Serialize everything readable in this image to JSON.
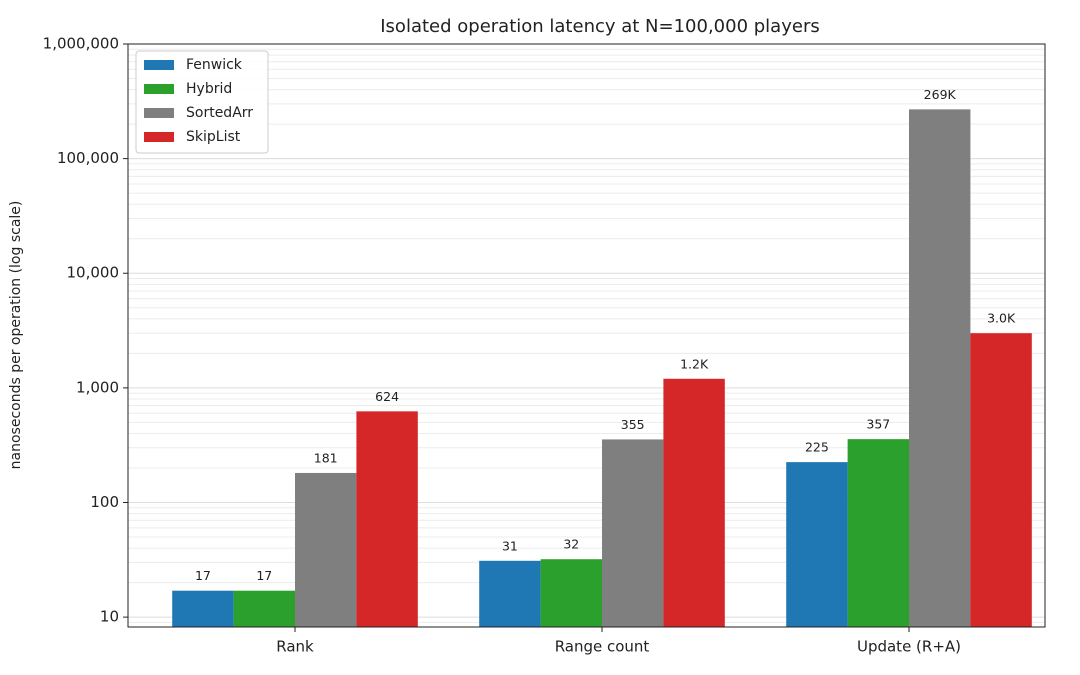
{
  "chart_data": {
    "type": "bar",
    "title": "Isolated operation latency at N=100,000 players",
    "y_label": "nanoseconds per operation (log scale)",
    "categories": [
      "Rank",
      "Range count",
      "Update (R+A)"
    ],
    "series": [
      {
        "name": "Fenwick",
        "color": "#1f77b4",
        "values": [
          17,
          31,
          225
        ]
      },
      {
        "name": "Hybrid",
        "color": "#2ca02c",
        "values": [
          17,
          32,
          357
        ]
      },
      {
        "name": "SortedArr",
        "color": "#7f7f7f",
        "values": [
          181,
          355,
          269000
        ],
        "value_labels": [
          "181",
          "355",
          "269K"
        ]
      },
      {
        "name": "SkipList",
        "color": "#d62728",
        "values": [
          624,
          1200,
          3000
        ],
        "value_labels": [
          "624",
          "1.2K",
          "3.0K"
        ]
      }
    ],
    "ylim": [
      8.2,
      1000000
    ],
    "log_scale": true,
    "yticks": [
      10,
      100,
      {
        "value": 1000,
        "label": "1,000"
      },
      {
        "value": 10000,
        "label": "10,000"
      },
      {
        "value": 100000,
        "label": "100,000"
      },
      {
        "value": 1000000,
        "label": "1,000,000"
      }
    ],
    "grid": true,
    "minor_grid": true,
    "legend": "upper-left"
  }
}
